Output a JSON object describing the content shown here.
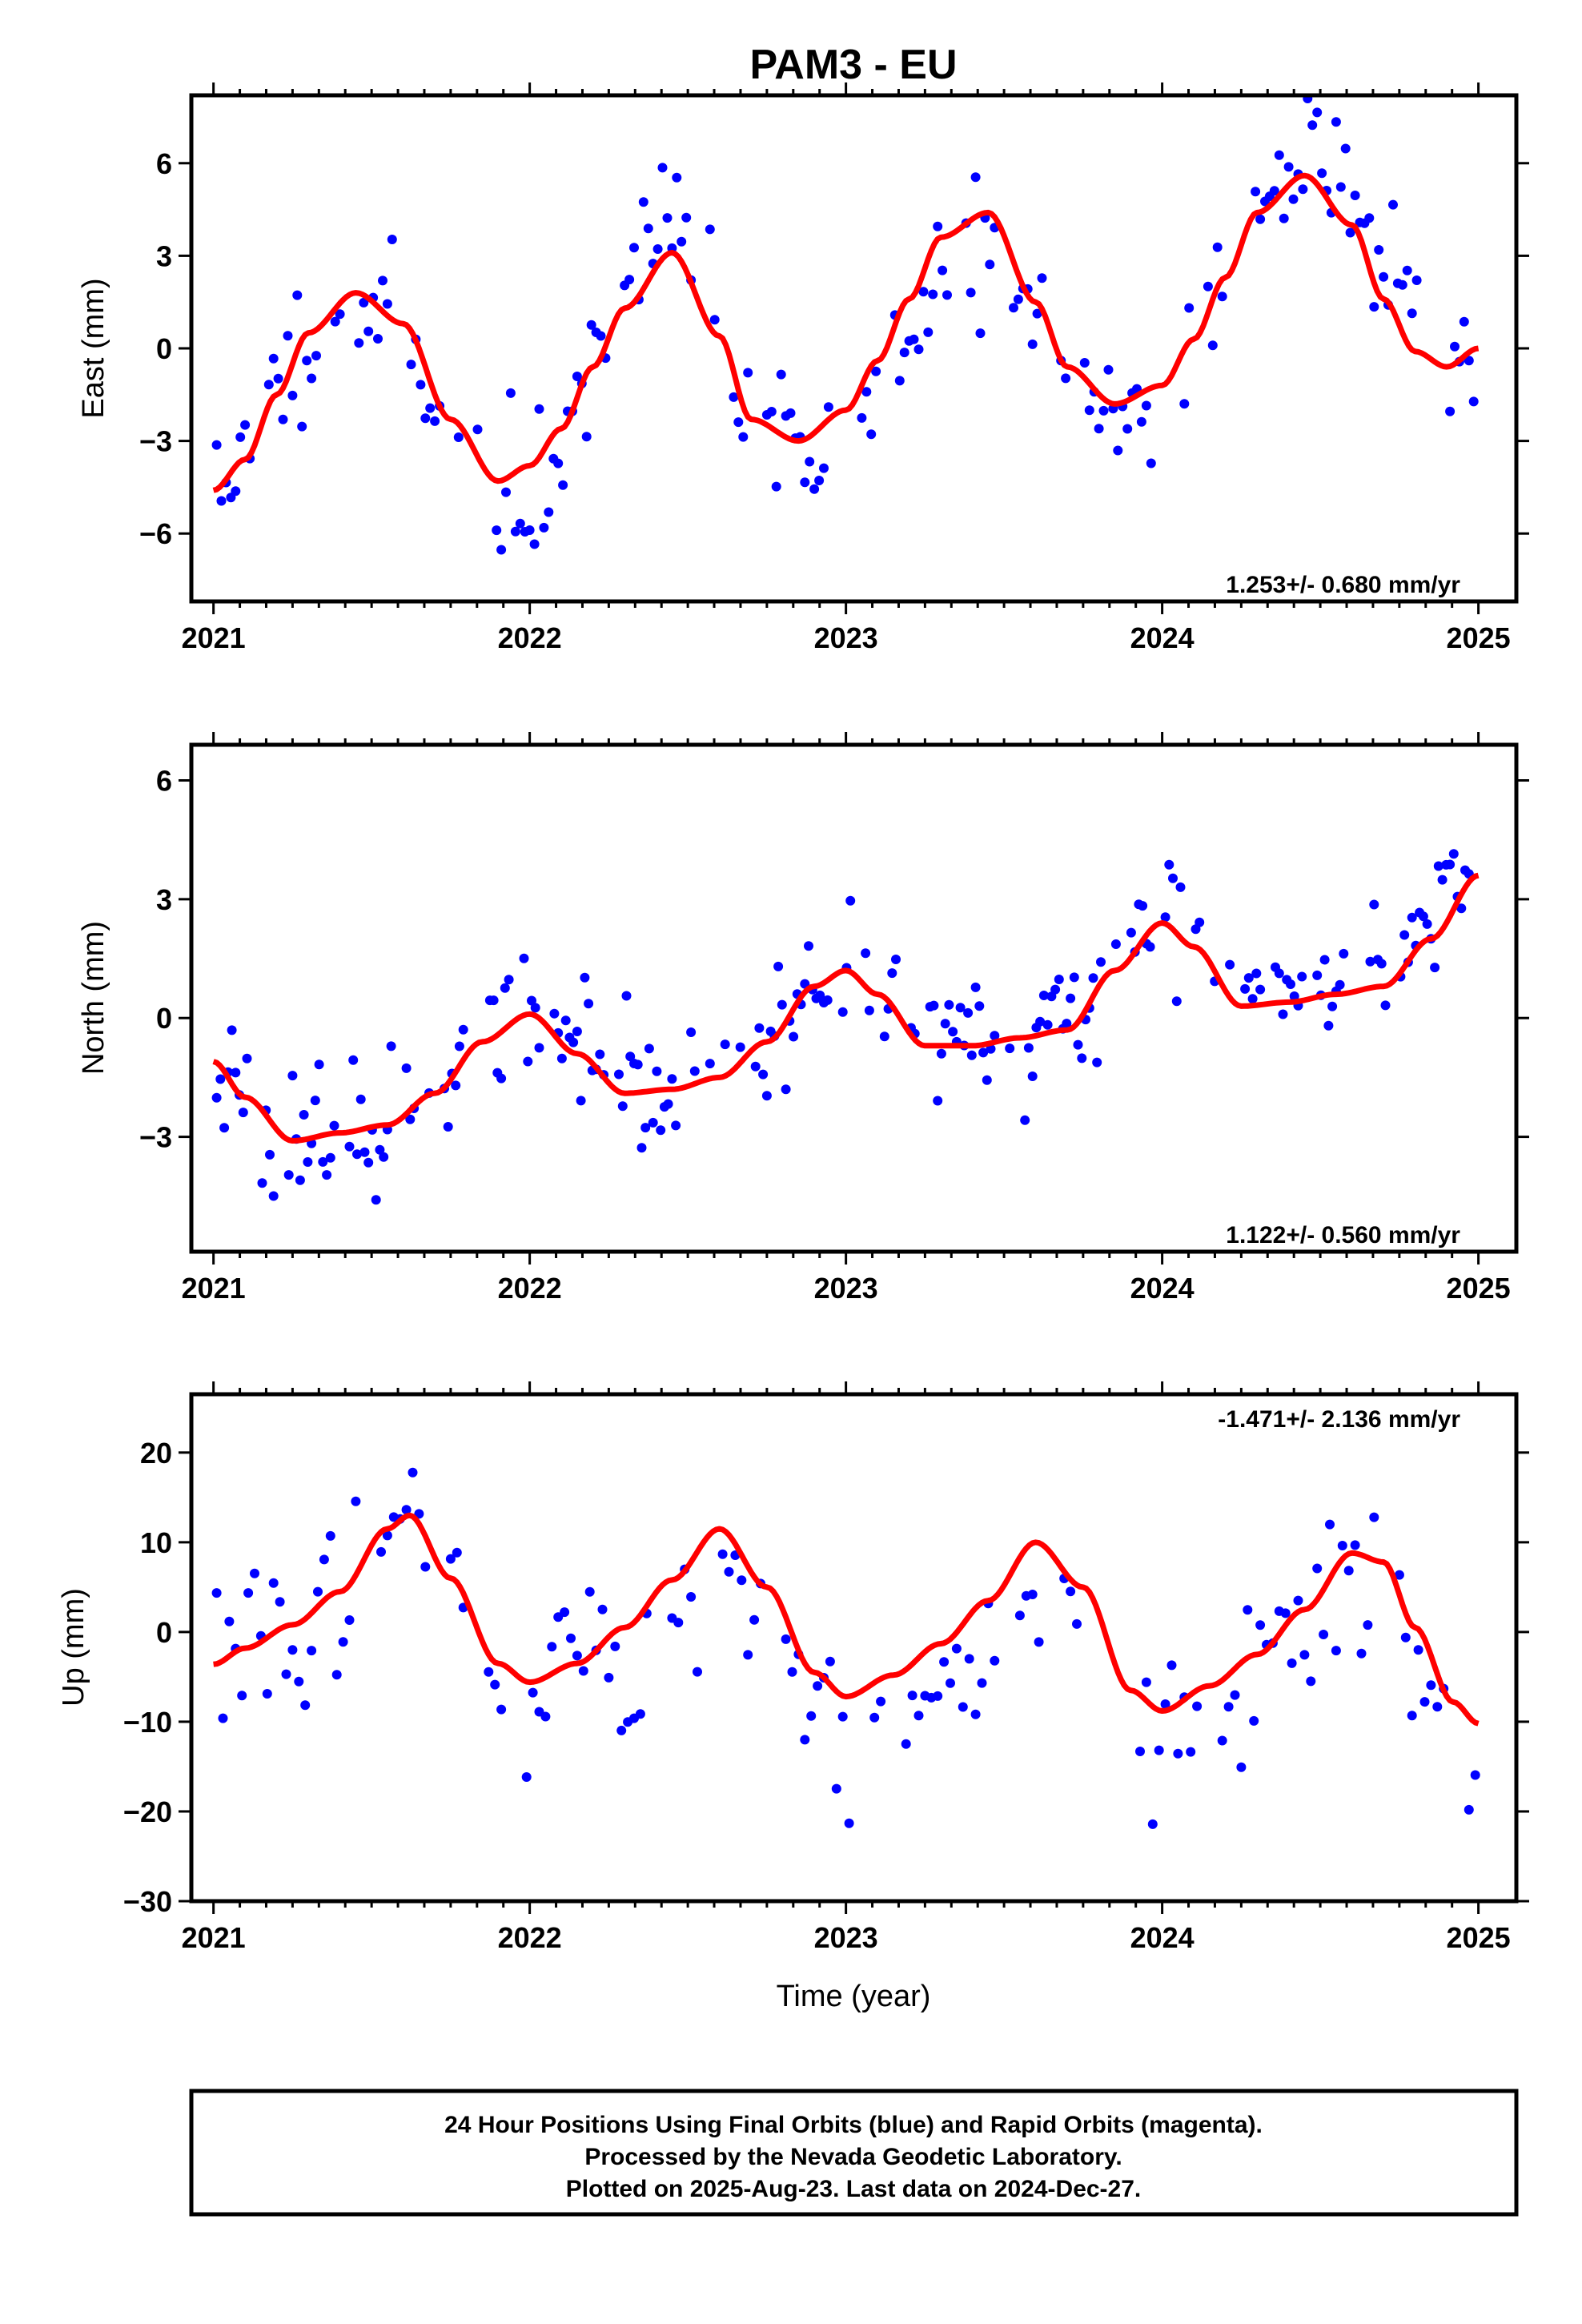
{
  "title": "PAM3 - EU",
  "xlabel": "Time (year)",
  "colors": {
    "final_orbits": "#0000ff",
    "model_fit": "#ff0000",
    "frame": "#000000"
  },
  "caption": [
    "24 Hour Positions Using Final Orbits (blue) and Rapid Orbits (magenta).",
    "Processed by the Nevada Geodetic Laboratory.",
    "Plotted on 2025-Aug-23. Last data on 2024-Dec-27."
  ],
  "chart_data": [
    {
      "type": "scatter",
      "component": "east",
      "ylabel": "East (mm)",
      "rate_label": "1.253+/- 0.680 mm/yr",
      "xlim": [
        2020.93,
        2025.12
      ],
      "ylim": [
        -8.2,
        8.2
      ],
      "xticks": [
        2021,
        2022,
        2023,
        2024,
        2025
      ],
      "xtick_labels": [
        "2021",
        "2022",
        "2023",
        "2024",
        "2025"
      ],
      "yticks": [
        -6,
        -3,
        0,
        3,
        6
      ],
      "ytick_labels": [
        "−6",
        "−3",
        "0",
        "3",
        "6"
      ],
      "fit_x": [
        2021.0,
        2021.1,
        2021.2,
        2021.3,
        2021.45,
        2021.6,
        2021.75,
        2021.9,
        2022.0,
        2022.1,
        2022.2,
        2022.3,
        2022.45,
        2022.6,
        2022.7,
        2022.85,
        2023.0,
        2023.1,
        2023.2,
        2023.3,
        2023.45,
        2023.6,
        2023.7,
        2023.85,
        2024.0,
        2024.1,
        2024.2,
        2024.3,
        2024.45,
        2024.6,
        2024.7,
        2024.8,
        2024.9,
        2025.0
      ],
      "fit_y": [
        -4.6,
        -3.6,
        -1.5,
        0.5,
        1.8,
        0.8,
        -2.3,
        -4.3,
        -3.8,
        -2.6,
        -0.6,
        1.3,
        3.1,
        0.4,
        -2.3,
        -3.0,
        -2.0,
        -0.4,
        1.6,
        3.6,
        4.4,
        1.5,
        -0.6,
        -1.8,
        -1.2,
        0.3,
        2.3,
        4.4,
        5.6,
        4.0,
        1.6,
        -0.1,
        -0.6,
        0.0
      ],
      "scatter": [
        0.8,
        2.3,
        0.12,
        0.015,
        11
      ]
    },
    {
      "type": "scatter",
      "component": "north",
      "ylabel": "North (mm)",
      "rate_label": "1.122+/- 0.560 mm/yr",
      "xlim": [
        2020.93,
        2025.12
      ],
      "ylim": [
        -5.9,
        6.9
      ],
      "xticks": [
        2021,
        2022,
        2023,
        2024,
        2025
      ],
      "xtick_labels": [
        "2021",
        "2022",
        "2023",
        "2024",
        "2025"
      ],
      "yticks": [
        -3,
        0,
        3,
        6
      ],
      "ytick_labels": [
        "−3",
        "0",
        "3",
        "6"
      ],
      "fit_x": [
        2021.0,
        2021.1,
        2021.25,
        2021.4,
        2021.55,
        2021.7,
        2021.85,
        2022.0,
        2022.15,
        2022.3,
        2022.45,
        2022.6,
        2022.75,
        2022.9,
        2023.0,
        2023.1,
        2023.25,
        2023.4,
        2023.55,
        2023.7,
        2023.85,
        2024.0,
        2024.1,
        2024.25,
        2024.4,
        2024.55,
        2024.7,
        2024.85,
        2025.0
      ],
      "fit_y": [
        -1.1,
        -2.0,
        -3.1,
        -2.9,
        -2.7,
        -1.9,
        -0.6,
        0.1,
        -0.9,
        -1.9,
        -1.8,
        -1.5,
        -0.6,
        0.8,
        1.2,
        0.6,
        -0.7,
        -0.7,
        -0.5,
        -0.3,
        1.2,
        2.4,
        1.8,
        0.3,
        0.4,
        0.6,
        0.8,
        2.0,
        3.6
      ],
      "scatter": [
        0.6,
        1.1,
        0.1,
        0.012,
        23
      ]
    },
    {
      "type": "scatter",
      "component": "up",
      "ylabel": "Up (mm)",
      "rate_label": "-1.471+/- 2.136 mm/yr",
      "xlim": [
        2020.93,
        2025.12
      ],
      "ylim": [
        -30,
        26.5
      ],
      "xticks": [
        2021,
        2022,
        2023,
        2024,
        2025
      ],
      "xtick_labels": [
        "2021",
        "2022",
        "2023",
        "2024",
        "2025"
      ],
      "yticks": [
        -30,
        -20,
        -10,
        0,
        10,
        20
      ],
      "ytick_labels": [
        "−30",
        "−20",
        "−10",
        "0",
        "10",
        "20"
      ],
      "fit_x": [
        2021.0,
        2021.1,
        2021.25,
        2021.4,
        2021.55,
        2021.62,
        2021.75,
        2021.9,
        2022.0,
        2022.15,
        2022.3,
        2022.45,
        2022.6,
        2022.75,
        2022.9,
        2023.0,
        2023.15,
        2023.3,
        2023.45,
        2023.6,
        2023.75,
        2023.9,
        2024.0,
        2024.15,
        2024.3,
        2024.45,
        2024.6,
        2024.7,
        2024.8,
        2024.92,
        2025.0
      ],
      "fit_y": [
        -3.6,
        -1.8,
        0.8,
        4.5,
        11.5,
        13.0,
        6.0,
        -3.5,
        -5.6,
        -3.5,
        0.5,
        5.8,
        11.5,
        5.0,
        -4.5,
        -7.2,
        -4.8,
        -1.3,
        3.5,
        10.0,
        5.0,
        -6.5,
        -8.8,
        -6.0,
        -2.5,
        2.5,
        8.8,
        7.8,
        0.5,
        -7.8,
        -10.2
      ],
      "scatter": [
        3.0,
        9.0,
        0.1,
        0.02,
        37
      ]
    }
  ]
}
